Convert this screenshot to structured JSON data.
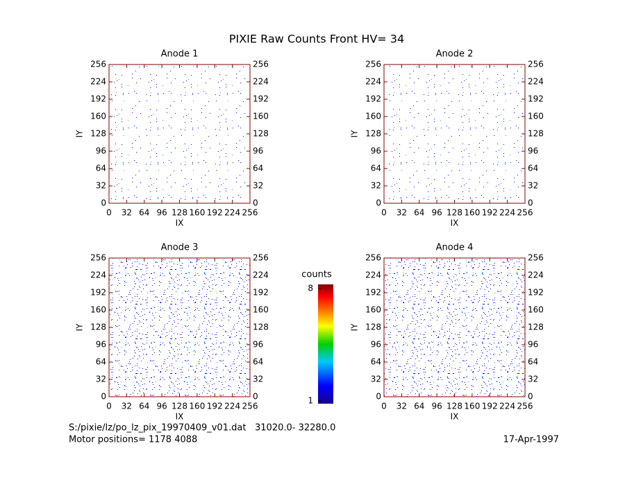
{
  "title": "PIXIE Raw Counts Front HV= 34",
  "chart_data": [
    {
      "type": "heatmap",
      "title": "Anode 1",
      "x_label": "IX",
      "y_label": "IY",
      "xlim": [
        0,
        256
      ],
      "ylim": [
        0,
        256
      ],
      "xticks": [
        0,
        32,
        64,
        96,
        128,
        160,
        192,
        224,
        256
      ],
      "yticks": [
        0,
        32,
        64,
        96,
        128,
        160,
        192,
        224,
        256
      ]
    },
    {
      "type": "heatmap",
      "title": "Anode 2",
      "x_label": "IX",
      "y_label": "IY",
      "xlim": [
        0,
        256
      ],
      "ylim": [
        0,
        256
      ],
      "xticks": [
        0,
        32,
        64,
        96,
        128,
        160,
        192,
        224,
        256
      ],
      "yticks": [
        0,
        32,
        64,
        96,
        128,
        160,
        192,
        224,
        256
      ]
    },
    {
      "type": "heatmap",
      "title": "Anode 3",
      "x_label": "IX",
      "y_label": "IY",
      "xlim": [
        0,
        256
      ],
      "ylim": [
        0,
        256
      ],
      "xticks": [
        0,
        32,
        64,
        96,
        128,
        160,
        192,
        224,
        256
      ],
      "yticks": [
        0,
        32,
        64,
        96,
        128,
        160,
        192,
        224,
        256
      ]
    },
    {
      "type": "heatmap",
      "title": "Anode 4",
      "x_label": "IX",
      "y_label": "IY",
      "xlim": [
        0,
        256
      ],
      "ylim": [
        0,
        256
      ],
      "xticks": [
        0,
        32,
        64,
        96,
        128,
        160,
        192,
        224,
        256
      ],
      "yticks": [
        0,
        32,
        64,
        96,
        128,
        160,
        192,
        224,
        256
      ]
    }
  ],
  "colorbar": {
    "label": "counts",
    "range": [
      1,
      8
    ],
    "ticks": [
      1,
      8
    ]
  },
  "footer": {
    "file": "S:/pixie/lz/po_lz_pix_19970409_v01.dat",
    "range": "31020.0- 32280.0",
    "motor": "Motor positions= 1178 4088",
    "date": "17-Apr-1997"
  }
}
